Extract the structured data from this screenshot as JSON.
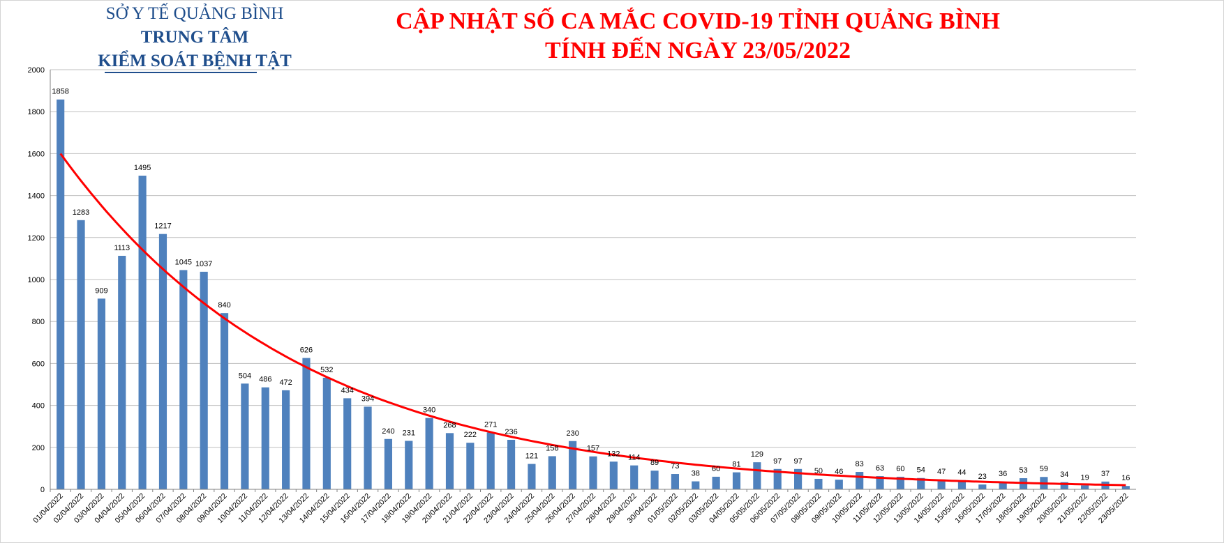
{
  "header": {
    "org_line1": "SỞ Y TẾ QUẢNG BÌNH",
    "org_line2": "TRUNG TÂM",
    "org_line3": "KIỂM SOÁT BỆNH TẬT",
    "title": "CẬP NHẬT SỐ CA MẮC COVID-19 TỈNH QUẢNG BÌNH",
    "subtitle": "TÍNH ĐẾN NGÀY 23/05/2022"
  },
  "colors": {
    "bar": "#4f81bd",
    "trendline": "#ff0000",
    "title": "#ff0000",
    "org_text": "#1f4e8c",
    "grid": "#bfbfbf"
  },
  "chart_data": {
    "type": "bar",
    "title": "CẬP NHẬT SỐ CA MẮC COVID-19 TỈNH QUẢNG BÌNH",
    "subtitle": "TÍNH ĐẾN NGÀY 23/05/2022",
    "xlabel": "",
    "ylabel": "",
    "ylim": [
      0,
      2000
    ],
    "yticks": [
      0,
      200,
      400,
      600,
      800,
      1000,
      1200,
      1400,
      1600,
      1800,
      2000
    ],
    "grid": true,
    "legend": "none",
    "data_labels": true,
    "trendline": "exponential",
    "categories": [
      "01/04/2022",
      "02/04/2022",
      "03/04/2022",
      "04/04/2022",
      "05/04/2022",
      "06/04/2022",
      "07/04/2022",
      "08/04/2022",
      "09/04/2022",
      "10/04/2022",
      "11/04/2022",
      "12/04/2022",
      "13/04/2022",
      "14/04/2022",
      "15/04/2022",
      "16/04/2022",
      "17/04/2022",
      "18/04/2022",
      "19/04/2022",
      "20/04/2022",
      "21/04/2022",
      "22/04/2022",
      "23/04/2022",
      "24/04/2022",
      "25/04/2022",
      "26/04/2022",
      "27/04/2022",
      "28/04/2022",
      "29/04/2022",
      "30/04/2022",
      "01/05/2022",
      "02/05/2022",
      "03/05/2022",
      "04/05/2022",
      "05/05/2022",
      "06/05/2022",
      "07/05/2022",
      "08/05/2022",
      "09/05/2022",
      "10/05/2022",
      "11/05/2022",
      "12/05/2022",
      "13/05/2022",
      "14/05/2022",
      "15/05/2022",
      "16/05/2022",
      "17/05/2022",
      "18/05/2022",
      "19/05/2022",
      "20/05/2022",
      "21/05/2022",
      "22/05/2022",
      "23/05/2022"
    ],
    "values": [
      1858,
      1283,
      909,
      1113,
      1495,
      1217,
      1045,
      1037,
      840,
      504,
      486,
      472,
      626,
      532,
      434,
      394,
      240,
      231,
      340,
      268,
      222,
      271,
      236,
      121,
      158,
      230,
      157,
      132,
      114,
      89,
      73,
      38,
      60,
      81,
      129,
      97,
      97,
      50,
      46,
      83,
      63,
      60,
      54,
      47,
      44,
      23,
      36,
      53,
      59,
      34,
      19,
      37,
      16
    ],
    "trend": {
      "start": 1600,
      "end": 20
    }
  }
}
